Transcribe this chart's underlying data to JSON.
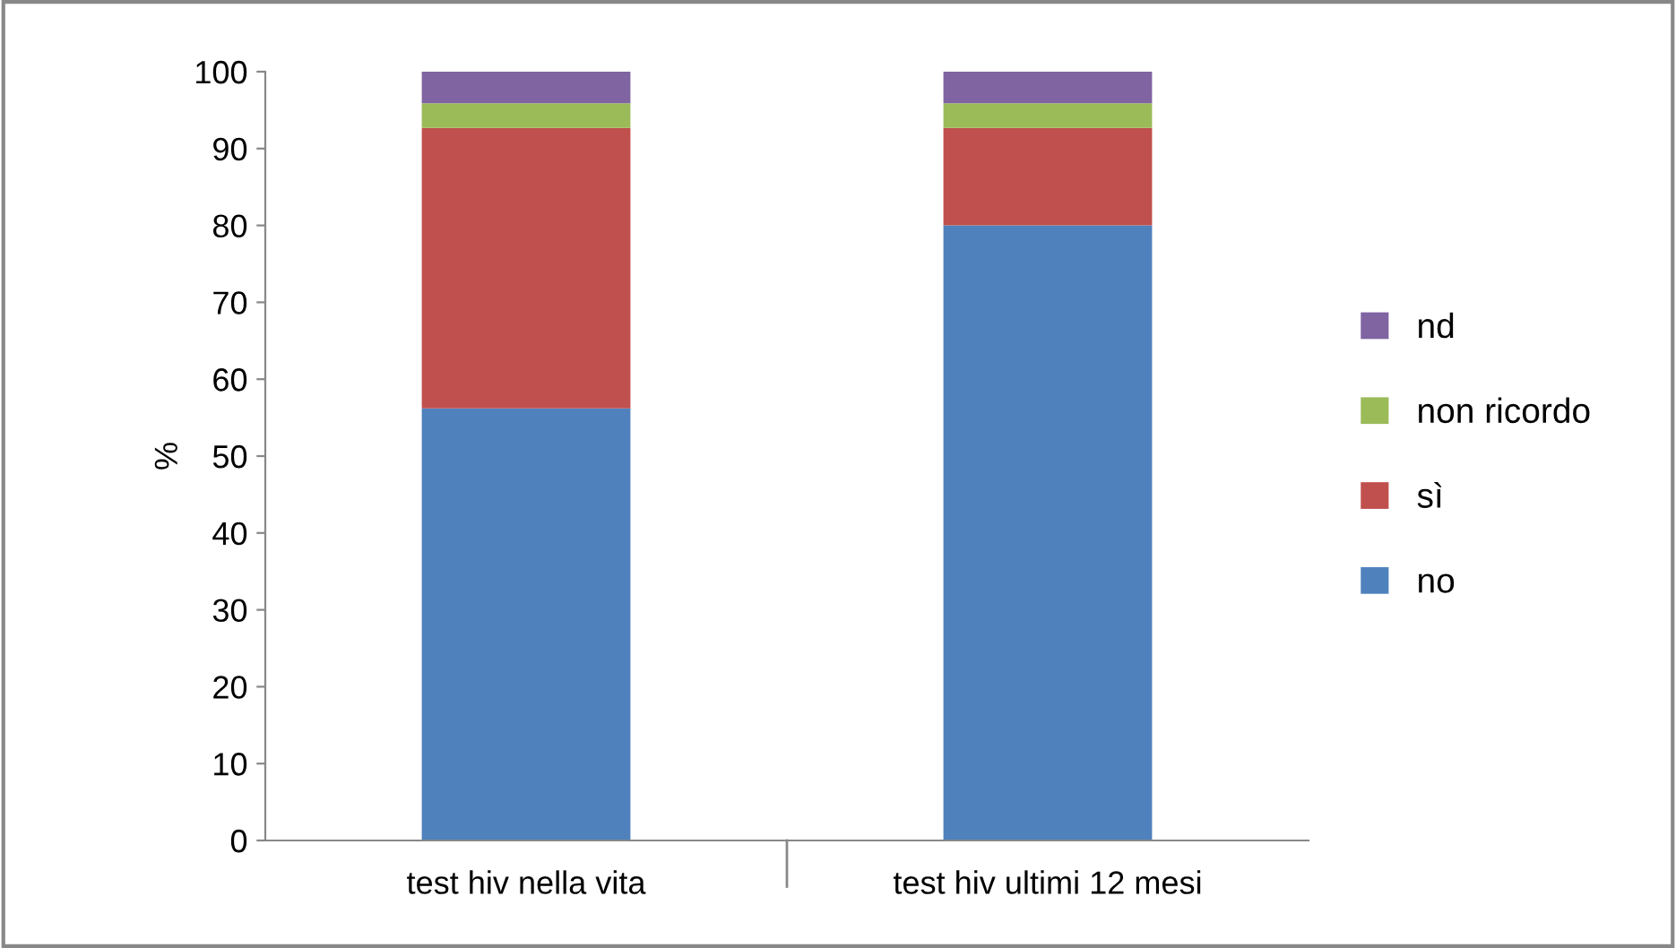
{
  "chart_data": {
    "type": "bar",
    "stacked": true,
    "ylabel": "%",
    "categories": [
      "test hiv nella vita",
      "test hiv ultimi 12 mesi"
    ],
    "series": [
      {
        "name": "no",
        "color": "#4f81bd",
        "values": [
          56.2,
          80.0
        ]
      },
      {
        "name": "sì",
        "color": "#c0504d",
        "values": [
          36.5,
          12.7
        ]
      },
      {
        "name": "non ricordo",
        "color": "#9bbb59",
        "values": [
          3.2,
          3.2
        ]
      },
      {
        "name": "nd",
        "color": "#8064a2",
        "values": [
          4.1,
          4.1
        ]
      }
    ],
    "ylim": [
      0,
      100
    ],
    "yticks": [
      0,
      10,
      20,
      30,
      40,
      50,
      60,
      70,
      80,
      90,
      100
    ],
    "grid": false,
    "legend": "right"
  }
}
